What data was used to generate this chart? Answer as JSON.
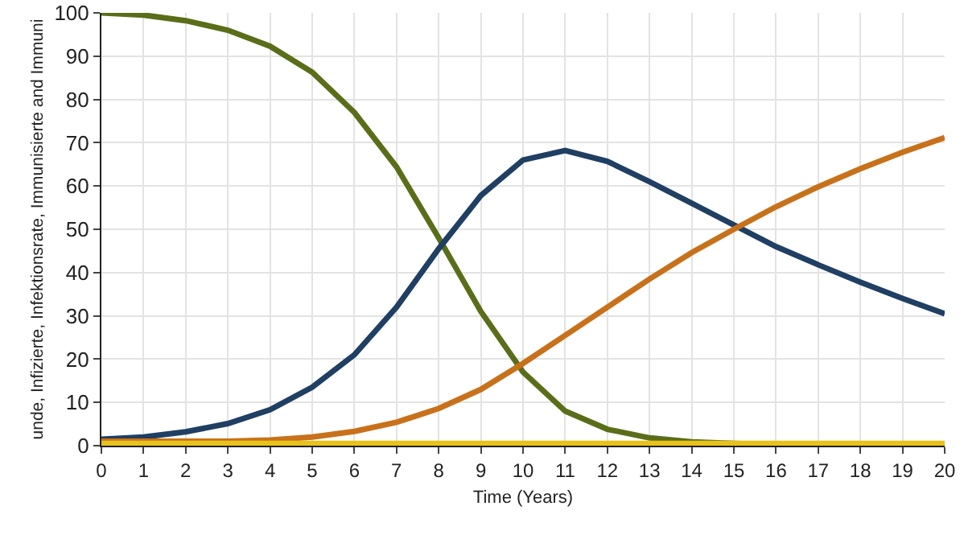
{
  "chart_data": {
    "type": "line",
    "xlabel": "Time (Years)",
    "ylabel": "unde, Infizierte, Infektionsrate, Immunisierte and Immuni",
    "x": [
      0,
      1,
      2,
      3,
      4,
      5,
      6,
      7,
      8,
      9,
      10,
      11,
      12,
      13,
      14,
      15,
      16,
      17,
      18,
      19,
      20
    ],
    "series": [
      {
        "color": "#5a6e1a",
        "values": [
          100,
          99.5,
          98.2,
          96,
          92.3,
          86.3,
          77,
          64.4,
          48,
          31,
          17,
          8,
          3.8,
          1.8,
          0.9,
          0.5,
          0.3,
          null,
          null,
          null,
          null
        ]
      },
      {
        "color": "#1f3f63",
        "values": [
          1.5,
          2,
          3.2,
          5.1,
          8.3,
          13.5,
          21,
          32,
          45.5,
          57.8,
          66,
          68.2,
          65.7,
          61,
          56,
          51,
          46,
          41.8,
          37.8,
          34,
          30.5
        ]
      },
      {
        "color": "#c8711b",
        "values": [
          1,
          1,
          1,
          1,
          1.3,
          2,
          3.3,
          5.4,
          8.6,
          13,
          19,
          25.5,
          32,
          38.5,
          44.6,
          50,
          55.2,
          59.8,
          64,
          67.8,
          71.2
        ]
      },
      {
        "color": "#e8c21a",
        "values": [
          0.5,
          0.5,
          0.5,
          0.5,
          0.5,
          0.5,
          0.5,
          0.5,
          0.5,
          0.5,
          0.5,
          0.5,
          0.5,
          0.5,
          0.5,
          0.5,
          0.5,
          0.5,
          0.5,
          0.5,
          0.5
        ]
      }
    ],
    "xlim": [
      0,
      20
    ],
    "xticks": [
      0,
      1,
      2,
      3,
      4,
      5,
      6,
      7,
      8,
      9,
      10,
      11,
      12,
      13,
      14,
      15,
      16,
      17,
      18,
      19,
      20
    ],
    "ylim": [
      0,
      100
    ],
    "yticks": [
      0,
      10,
      20,
      30,
      40,
      50,
      60,
      70,
      80,
      90,
      100
    ],
    "grid": true,
    "marker": "none",
    "line_style": "solid"
  }
}
